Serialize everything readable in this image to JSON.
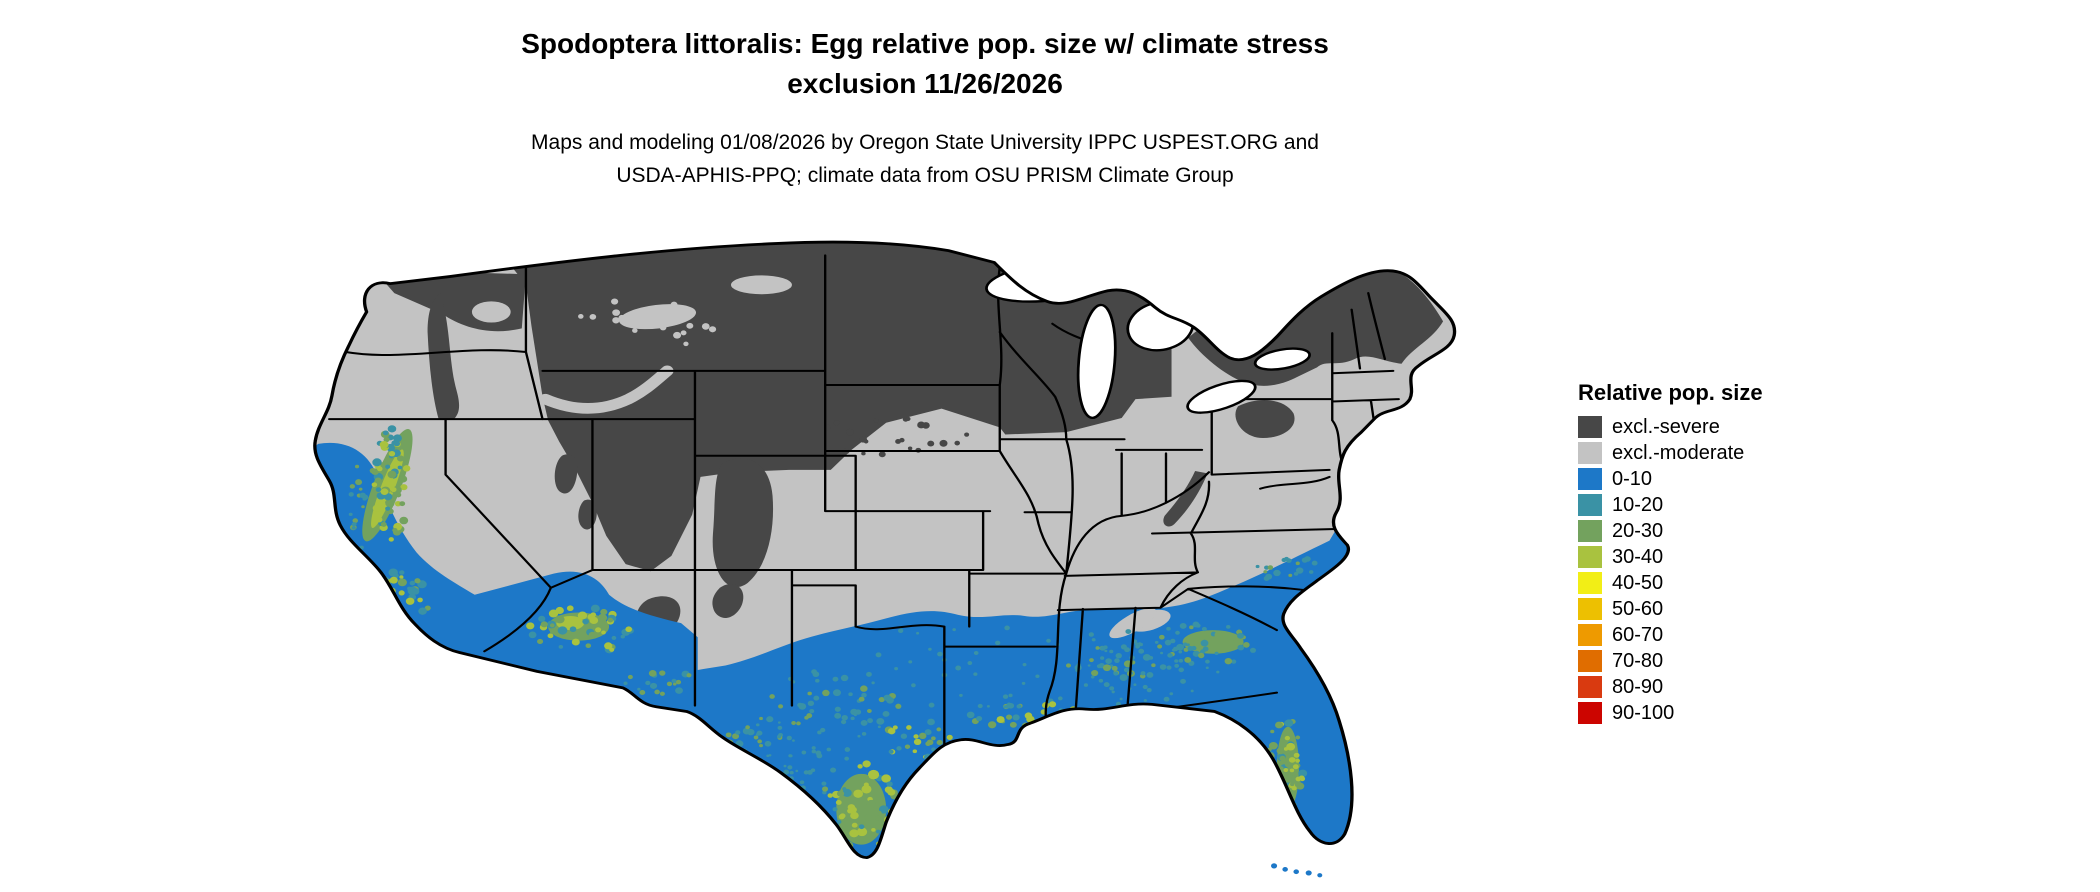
{
  "figure": {
    "title_line1": "Spodoptera littoralis: Egg relative pop. size w/ climate stress",
    "title_line2": "exclusion 11/26/2026",
    "subtitle_line1": "Maps and modeling 01/08/2026 by Oregon State University IPPC USPEST.ORG and",
    "subtitle_line2": "USDA-APHIS-PPQ; climate data from OSU PRISM Climate Group"
  },
  "legend": {
    "title": "Relative pop. size",
    "items": [
      {
        "label": "excl.-severe",
        "color": "#474747"
      },
      {
        "label": "excl.-moderate",
        "color": "#c3c3c3"
      },
      {
        "label": "0-10",
        "color": "#1d78c8"
      },
      {
        "label": "10-20",
        "color": "#3a92a5"
      },
      {
        "label": "20-30",
        "color": "#73a25e"
      },
      {
        "label": "30-40",
        "color": "#a9c23f"
      },
      {
        "label": "40-50",
        "color": "#f2ee16"
      },
      {
        "label": "50-60",
        "color": "#edc001"
      },
      {
        "label": "60-70",
        "color": "#ee9a00"
      },
      {
        "label": "70-80",
        "color": "#e06d00"
      },
      {
        "label": "80-90",
        "color": "#d93a10"
      },
      {
        "label": "90-100",
        "color": "#cc0500"
      }
    ]
  },
  "map": {
    "type": "choropleth-raster",
    "region": "Contiguous United States"
  }
}
